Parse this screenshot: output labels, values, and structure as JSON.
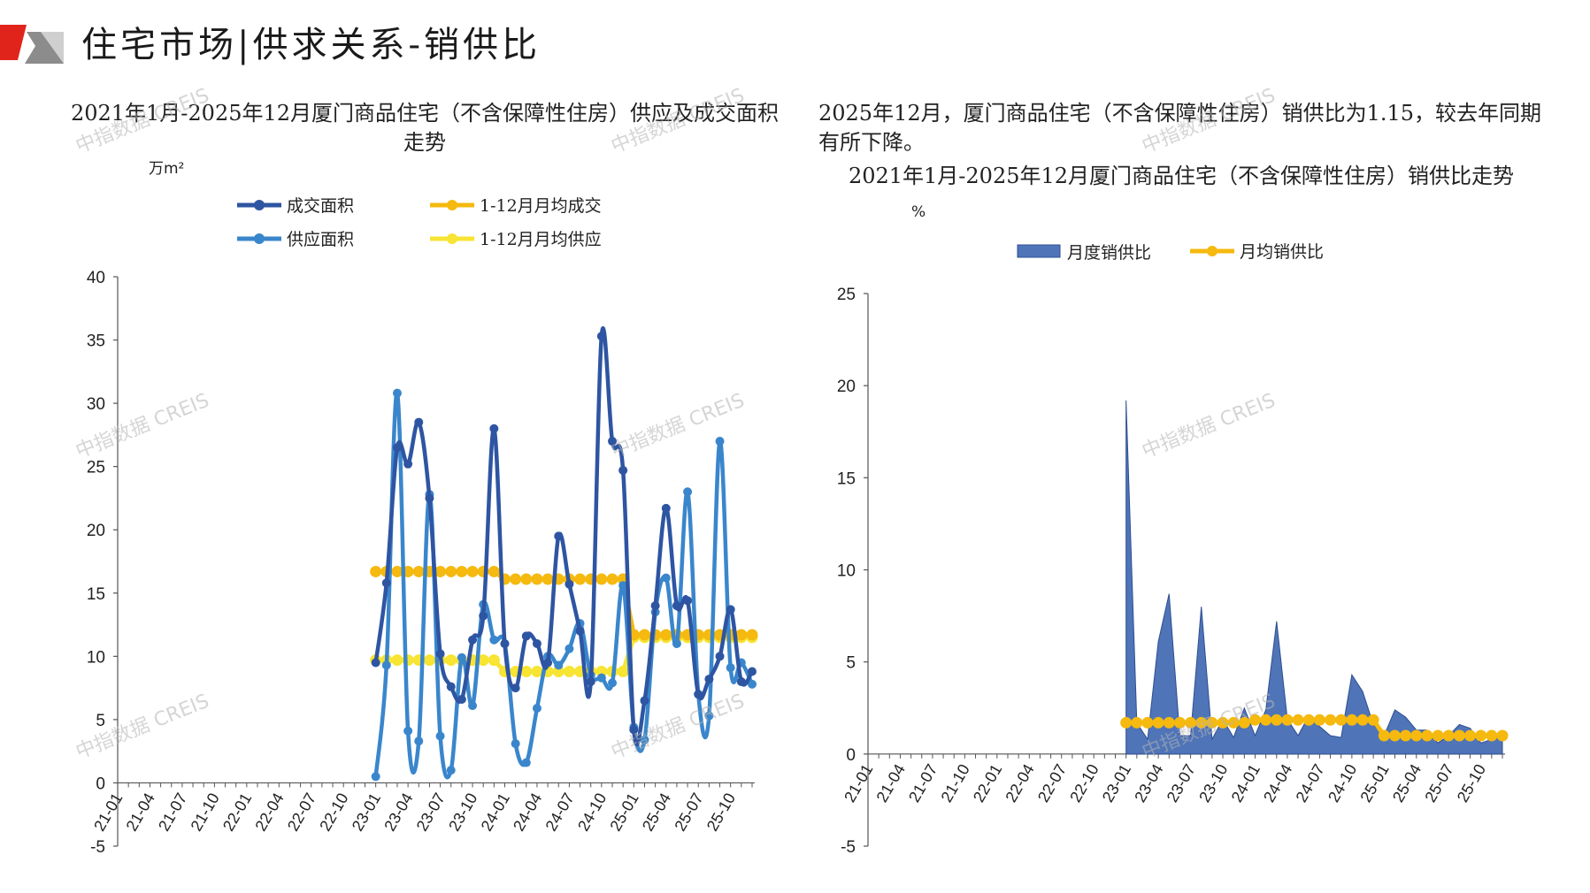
{
  "header": {
    "title": "住宅市场|供求关系-销供比"
  },
  "chart1": {
    "title": "2021年1月-2025年12月厦门商品住宅（不含保障性住房）供应及成交面积走势",
    "unit": "万m²"
  },
  "summary_text": "2025年12月，厦门商品住宅（不含保障性住房）销供比为1.15，较去年同期有所下降。",
  "chart2": {
    "title": "2021年1月-2025年12月厦门商品住宅（不含保障性住房）销供比走势",
    "unit": "%"
  },
  "watermark": "中指数据 CREIS",
  "colors": {
    "deal": "#2e55a2",
    "supply": "#3a86cc",
    "avg_deal": "#f5b90f",
    "avg_supply": "#f7e433",
    "ratio_fill": "#4f74b8",
    "ratio_avg": "#f5b90f",
    "logo_red": "#e0241b",
    "logo_gray": "#8c8c8c"
  },
  "chart_data": [
    {
      "type": "line",
      "title": "2021年1月-2025年12月厦门商品住宅（不含保障性住房）供应及成交面积走势",
      "ylabel": "万m²",
      "ylim": [
        -5,
        40
      ],
      "yticks": [
        -5,
        0,
        5,
        10,
        15,
        20,
        25,
        30,
        35,
        40
      ],
      "xticks": [
        "21-01",
        "21-04",
        "21-07",
        "21-10",
        "22-01",
        "22-04",
        "22-07",
        "22-10",
        "23-01",
        "23-04",
        "23-07",
        "23-10",
        "24-01",
        "24-04",
        "24-07",
        "24-10",
        "25-01",
        "25-04",
        "25-07",
        "25-10"
      ],
      "start_index": 24,
      "series": [
        {
          "name": "成交面积",
          "values": [
            9.5,
            15.8,
            26.5,
            25.2,
            28.5,
            22.5,
            10.2,
            7.6,
            6.6,
            11.3,
            13.2,
            28.0,
            11.0,
            7.5,
            11.6,
            11.0,
            9.5,
            19.5,
            15.7,
            12.0,
            8.0,
            35.3,
            27.0,
            24.7,
            4.2,
            6.5,
            14.0,
            21.7,
            14.0,
            14.4,
            7.0,
            8.2,
            10.0,
            13.7,
            8.0,
            8.8
          ]
        },
        {
          "name": "供应面积",
          "values": [
            0.5,
            9.3,
            30.8,
            4.1,
            3.3,
            22.8,
            3.7,
            1.0,
            9.9,
            6.1,
            14.1,
            11.3,
            11.0,
            3.1,
            1.6,
            5.9,
            10.0,
            9.3,
            10.6,
            12.6,
            8.5,
            8.3,
            7.9,
            15.6,
            4.4,
            3.4,
            13.5,
            16.2,
            11.0,
            23.0,
            7.0,
            5.3,
            27.0,
            9.1,
            9.5,
            7.8
          ]
        },
        {
          "name": "1-12月月均成交",
          "values": [
            16.7,
            16.7,
            16.7,
            16.7,
            16.7,
            16.7,
            16.7,
            16.7,
            16.7,
            16.7,
            16.7,
            16.7,
            16.1,
            16.1,
            16.1,
            16.1,
            16.1,
            16.1,
            16.1,
            16.1,
            16.1,
            16.1,
            16.1,
            16.1,
            11.7,
            11.7,
            11.7,
            11.7,
            11.7,
            11.7,
            11.7,
            11.7,
            11.7,
            11.7,
            11.7,
            11.7
          ]
        },
        {
          "name": "1-12月月均供应",
          "values": [
            9.7,
            9.7,
            9.7,
            9.7,
            9.7,
            9.7,
            9.7,
            9.7,
            9.7,
            9.7,
            9.7,
            9.7,
            8.8,
            8.8,
            8.8,
            8.8,
            8.8,
            8.8,
            8.8,
            8.8,
            8.8,
            8.8,
            8.8,
            8.8,
            11.5,
            11.5,
            11.5,
            11.5,
            11.5,
            11.5,
            11.5,
            11.5,
            11.5,
            11.5,
            11.5,
            11.5
          ]
        }
      ]
    },
    {
      "type": "area",
      "title": "2021年1月-2025年12月厦门商品住宅（不含保障性住房）销供比走势",
      "ylabel": "%",
      "ylim": [
        -5,
        25
      ],
      "yticks": [
        -5,
        0,
        5,
        10,
        15,
        20,
        25
      ],
      "xticks": [
        "21-01",
        "21-04",
        "21-07",
        "21-10",
        "22-01",
        "22-04",
        "22-07",
        "22-10",
        "23-01",
        "23-04",
        "23-07",
        "23-10",
        "24-01",
        "24-04",
        "24-07",
        "24-10",
        "25-01",
        "25-04",
        "25-07",
        "25-10"
      ],
      "start_index": 24,
      "series": [
        {
          "name": "月度销供比",
          "values": [
            19.2,
            1.7,
            0.8,
            6.1,
            8.7,
            1.0,
            1.0,
            8.0,
            0.8,
            1.9,
            0.9,
            2.5,
            1.0,
            2.4,
            7.2,
            1.9,
            1.0,
            2.1,
            1.5,
            1.0,
            0.9,
            4.3,
            3.4,
            1.6,
            1.0,
            2.4,
            2.0,
            1.3,
            1.3,
            0.6,
            1.0,
            1.6,
            1.4,
            0.6,
            0.8,
            1.15
          ]
        },
        {
          "name": "月均销供比",
          "values": [
            1.7,
            1.7,
            1.7,
            1.7,
            1.7,
            1.7,
            1.7,
            1.7,
            1.7,
            1.7,
            1.7,
            1.7,
            1.85,
            1.85,
            1.85,
            1.85,
            1.85,
            1.85,
            1.85,
            1.85,
            1.85,
            1.85,
            1.85,
            1.85,
            1.0,
            1.0,
            1.0,
            1.0,
            1.0,
            1.0,
            1.0,
            1.0,
            1.0,
            1.0,
            1.0,
            1.0
          ]
        }
      ]
    }
  ]
}
